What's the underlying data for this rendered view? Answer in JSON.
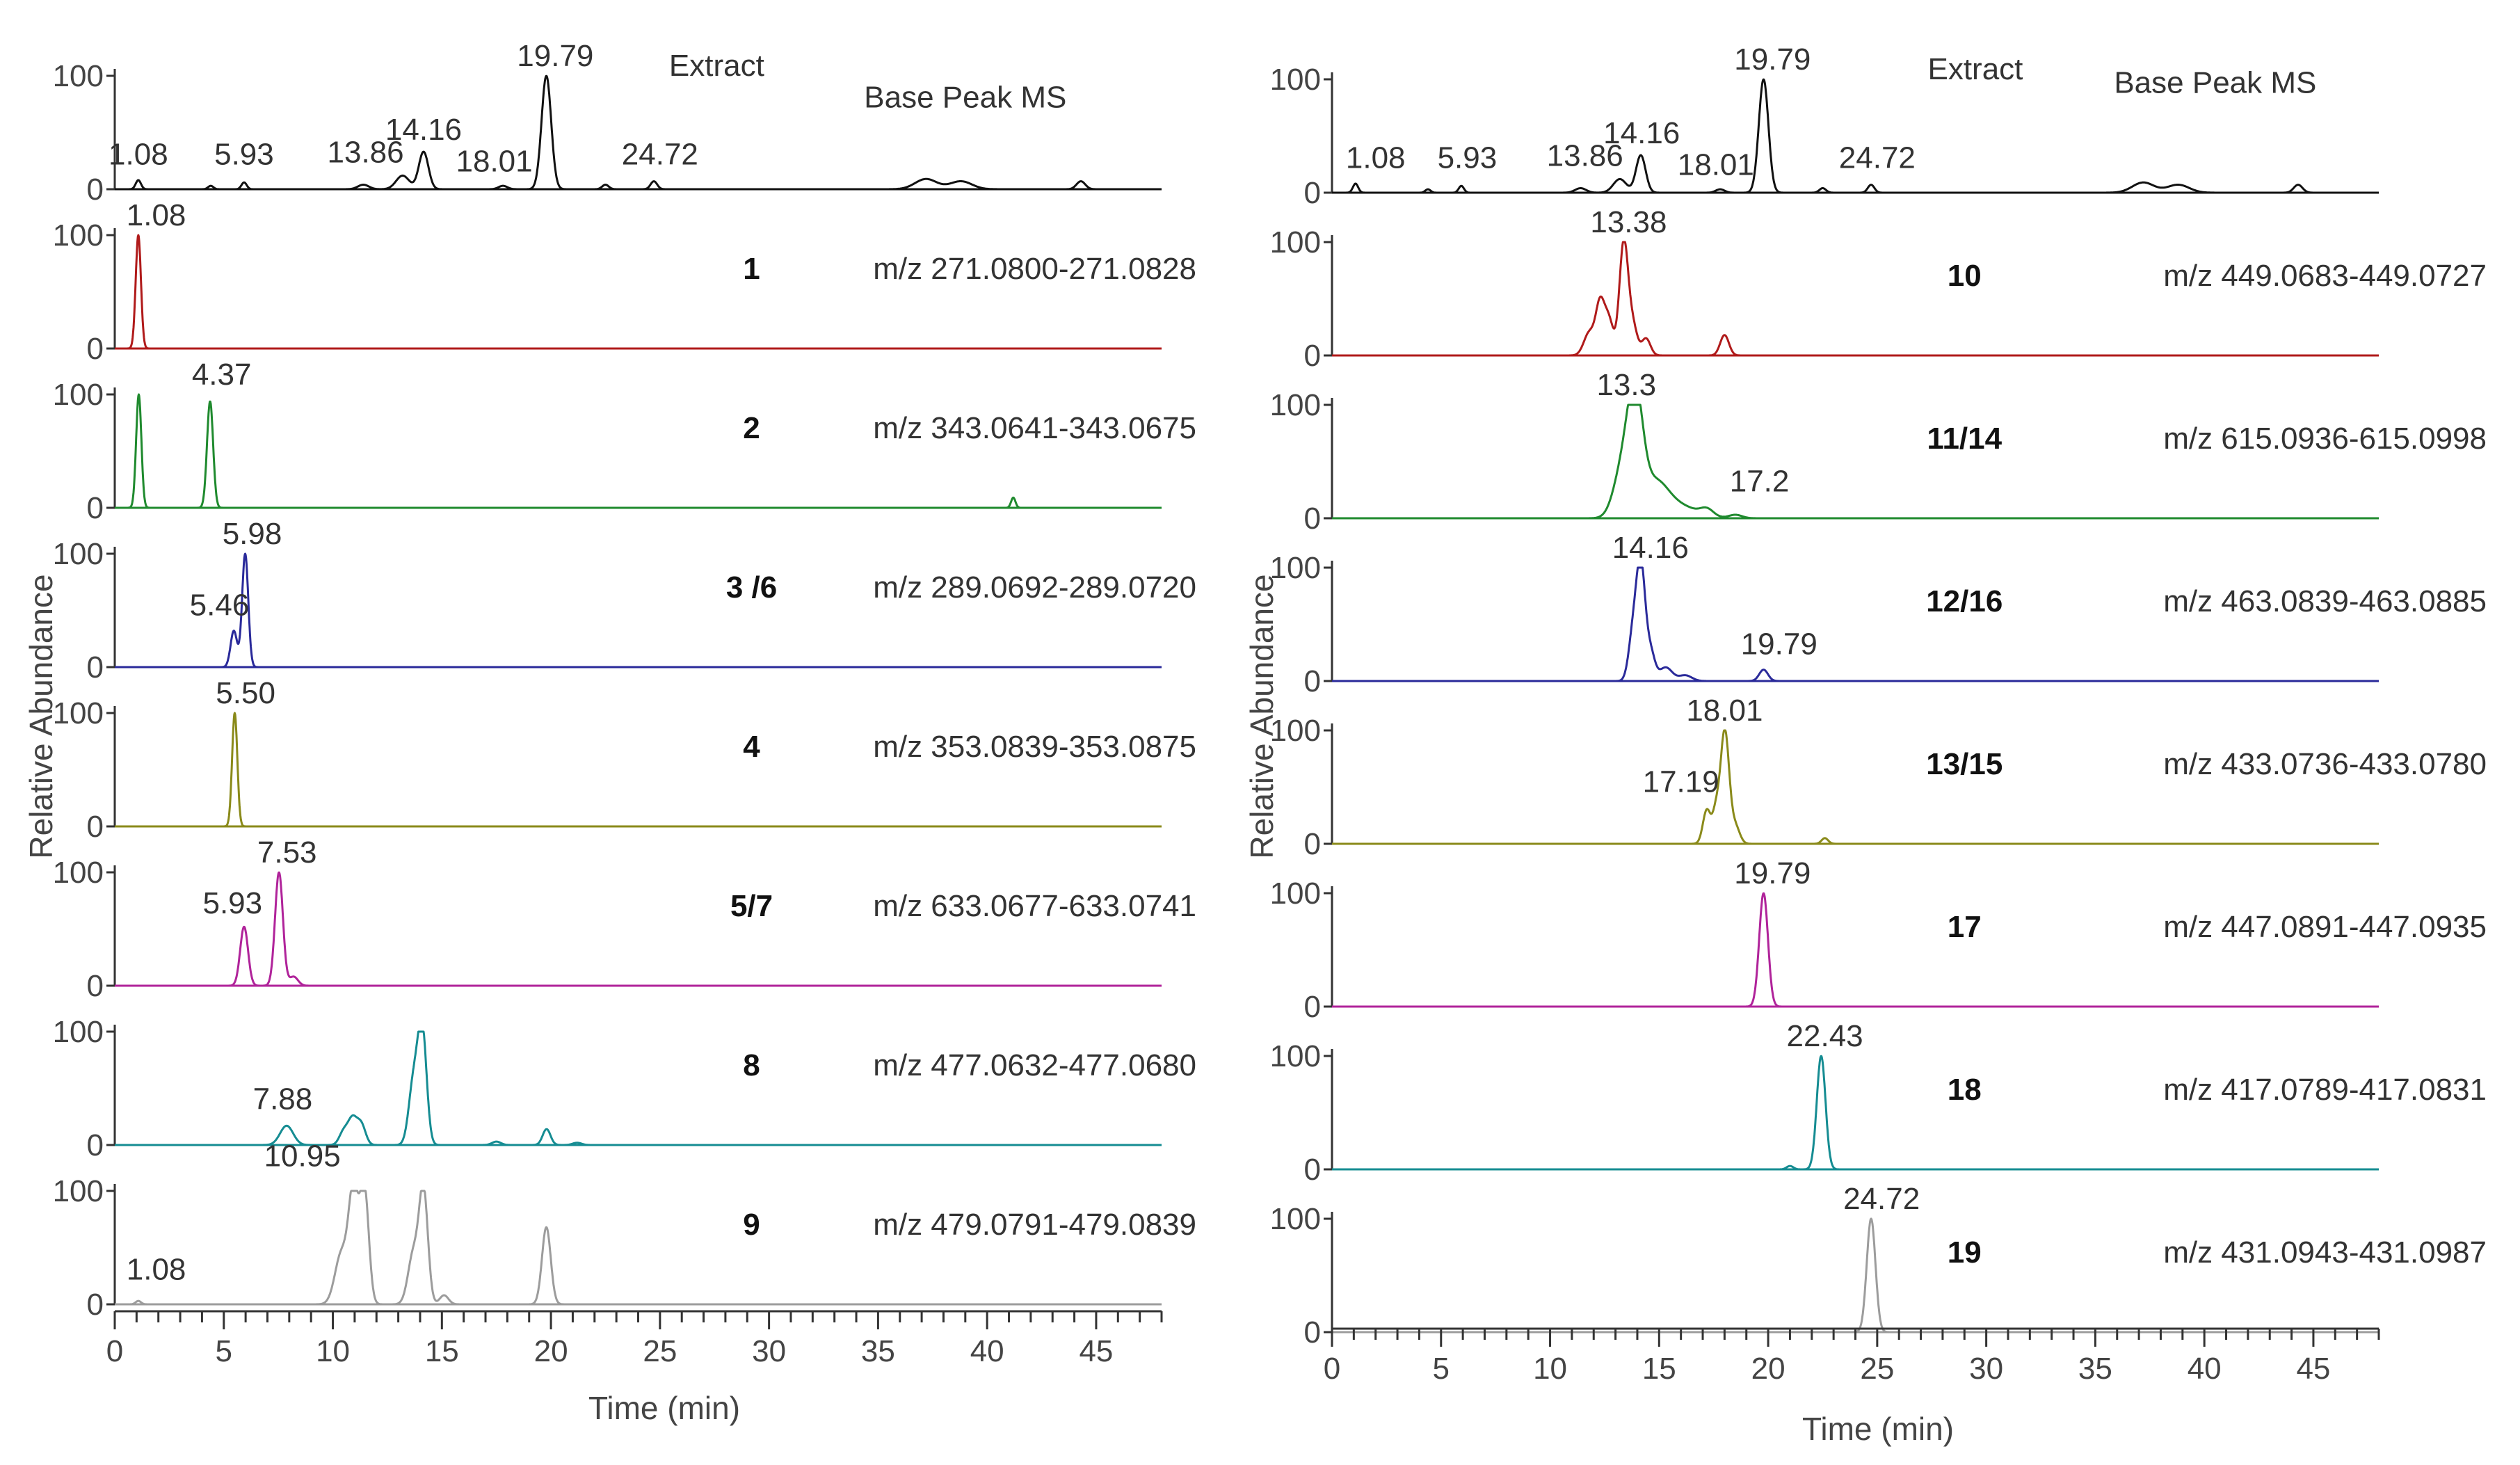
{
  "figure": {
    "x_axis_title": "Time (min)",
    "y_axis_title": "Relative Abundance"
  },
  "chart_data": [
    {
      "type": "line",
      "column": "left",
      "xlabel": "Time (min)",
      "ylabel": "Relative Abundance",
      "xlim": [
        0,
        48
      ],
      "ylim": [
        0,
        100
      ],
      "x_ticks": [
        "0",
        "5",
        "10",
        "15",
        "20",
        "25",
        "30",
        "35",
        "40",
        "45"
      ],
      "panels": [
        {
          "id": "left-base-peak",
          "compound": "",
          "title": "Extract",
          "subtitle": "Base Peak  MS",
          "mz": "",
          "color": "#111111",
          "peaks": [
            {
              "rt": 1.08,
              "h": 8,
              "w": 0.12
            },
            {
              "rt": 4.4,
              "h": 3,
              "w": 0.12
            },
            {
              "rt": 5.93,
              "h": 6,
              "w": 0.12
            },
            {
              "rt": 11.4,
              "h": 4,
              "w": 0.25
            },
            {
              "rt": 13.2,
              "h": 12,
              "w": 0.3
            },
            {
              "rt": 14.16,
              "h": 33,
              "w": 0.22
            },
            {
              "rt": 17.8,
              "h": 3,
              "w": 0.2
            },
            {
              "rt": 19.79,
              "h": 100,
              "w": 0.22
            },
            {
              "rt": 22.5,
              "h": 4,
              "w": 0.15
            },
            {
              "rt": 24.72,
              "h": 7,
              "w": 0.15
            },
            {
              "rt": 37.2,
              "h": 9,
              "w": 0.5
            },
            {
              "rt": 38.8,
              "h": 7,
              "w": 0.5
            },
            {
              "rt": 44.3,
              "h": 7,
              "w": 0.2
            }
          ],
          "labels": [
            {
              "text": "1.08",
              "rt": 1.08,
              "at": 18
            },
            {
              "text": "5.93",
              "rt": 5.93,
              "at": 18
            },
            {
              "text": "13.86",
              "rt": 11.5,
              "at": 20
            },
            {
              "text": "14.16",
              "rt": 14.16,
              "at": 40
            },
            {
              "text": "18.01",
              "rt": 17.4,
              "at": 12
            },
            {
              "text": "19.79",
              "rt": 20.2,
              "at": 105
            },
            {
              "text": "24.72",
              "rt": 25.0,
              "at": 18
            }
          ],
          "annotations": [
            {
              "text": "Extract",
              "x": 27.6,
              "y": 100,
              "bold": false
            },
            {
              "text": "Base Peak  MS",
              "x": 39.0,
              "y": 72,
              "bold": false
            }
          ]
        },
        {
          "id": "left-1",
          "compound": "1",
          "mz": "m/z 271.0800-271.0828",
          "color": "#b01a1a",
          "peaks": [
            {
              "rt": 1.08,
              "h": 100,
              "w": 0.12
            }
          ],
          "labels": [
            {
              "text": "1.08",
              "rt": 1.9,
              "at": 105
            }
          ],
          "annotations": []
        },
        {
          "id": "left-2",
          "compound": "2",
          "mz": "m/z 343.0641-343.0675",
          "color": "#1f8a2e",
          "peaks": [
            {
              "rt": 1.1,
              "h": 100,
              "w": 0.12
            },
            {
              "rt": 4.37,
              "h": 94,
              "w": 0.14
            },
            {
              "rt": 41.2,
              "h": 9,
              "w": 0.1
            }
          ],
          "labels": [
            {
              "text": "4.37",
              "rt": 4.9,
              "at": 105
            }
          ],
          "annotations": []
        },
        {
          "id": "left-3-6",
          "compound": "3 /6",
          "mz": "m/z 289.0692-289.0720",
          "color": "#2a2a9a",
          "peaks": [
            {
              "rt": 5.46,
              "h": 32,
              "w": 0.15
            },
            {
              "rt": 5.98,
              "h": 100,
              "w": 0.14
            }
          ],
          "labels": [
            {
              "text": "5.98",
              "rt": 6.3,
              "at": 105
            },
            {
              "text": "5.46",
              "rt": 4.8,
              "at": 42
            }
          ],
          "annotations": []
        },
        {
          "id": "left-4",
          "compound": "4",
          "mz": "m/z 353.0839-353.0875",
          "color": "#8a8a1a",
          "peaks": [
            {
              "rt": 5.5,
              "h": 100,
              "w": 0.12
            }
          ],
          "labels": [
            {
              "text": "5.50",
              "rt": 6.0,
              "at": 105
            }
          ],
          "annotations": []
        },
        {
          "id": "left-5-7",
          "compound": "5/7",
          "mz": "m/z 633.0677-633.0741",
          "color": "#b0239a",
          "peaks": [
            {
              "rt": 5.93,
              "h": 52,
              "w": 0.18
            },
            {
              "rt": 7.53,
              "h": 100,
              "w": 0.18
            },
            {
              "rt": 8.2,
              "h": 8,
              "w": 0.2
            }
          ],
          "labels": [
            {
              "text": "7.53",
              "rt": 7.9,
              "at": 105
            },
            {
              "text": "5.93",
              "rt": 5.4,
              "at": 60
            }
          ],
          "annotations": []
        },
        {
          "id": "left-8",
          "compound": "8",
          "mz": "m/z 477.0632-477.0680",
          "color": "#158c92",
          "peaks": [
            {
              "rt": 7.88,
              "h": 17,
              "w": 0.3
            },
            {
              "rt": 10.5,
              "h": 12,
              "w": 0.2
            },
            {
              "rt": 10.9,
              "h": 22,
              "w": 0.2
            },
            {
              "rt": 11.3,
              "h": 18,
              "w": 0.2
            },
            {
              "rt": 13.7,
              "h": 55,
              "w": 0.22
            },
            {
              "rt": 14.1,
              "h": 100,
              "w": 0.2
            },
            {
              "rt": 17.5,
              "h": 3,
              "w": 0.2
            },
            {
              "rt": 19.8,
              "h": 14,
              "w": 0.18
            },
            {
              "rt": 21.2,
              "h": 2,
              "w": 0.2
            }
          ],
          "labels": [
            {
              "text": "7.88",
              "rt": 7.7,
              "at": 28
            }
          ],
          "annotations": []
        },
        {
          "id": "left-9",
          "compound": "9",
          "mz": "m/z 479.0791-479.0839",
          "color": "#9c9c9c",
          "peaks": [
            {
              "rt": 1.08,
              "h": 3,
              "w": 0.12
            },
            {
              "rt": 10.4,
              "h": 45,
              "w": 0.3
            },
            {
              "rt": 10.95,
              "h": 97,
              "w": 0.22
            },
            {
              "rt": 11.45,
              "h": 100,
              "w": 0.2
            },
            {
              "rt": 13.7,
              "h": 45,
              "w": 0.25
            },
            {
              "rt": 14.16,
              "h": 98,
              "w": 0.2
            },
            {
              "rt": 15.1,
              "h": 8,
              "w": 0.2
            },
            {
              "rt": 19.79,
              "h": 68,
              "w": 0.2
            }
          ],
          "labels": [
            {
              "text": "10.95",
              "rt": 8.6,
              "at": 118
            },
            {
              "text": "1.08",
              "rt": 1.9,
              "at": 18
            }
          ],
          "annotations": []
        }
      ]
    },
    {
      "type": "line",
      "column": "right",
      "xlabel": "Time (min)",
      "ylabel": "Relative Abundance",
      "xlim": [
        0,
        48
      ],
      "ylim": [
        0,
        100
      ],
      "x_ticks": [
        "0",
        "5",
        "10",
        "15",
        "20",
        "25",
        "30",
        "35",
        "40",
        "45"
      ],
      "panels": [
        {
          "id": "right-base-peak",
          "compound": "",
          "title": "Extract",
          "subtitle": "Base Peak  MS",
          "mz": "",
          "color": "#111111",
          "peaks": [
            {
              "rt": 1.08,
              "h": 8,
              "w": 0.12
            },
            {
              "rt": 4.4,
              "h": 3,
              "w": 0.12
            },
            {
              "rt": 5.93,
              "h": 6,
              "w": 0.12
            },
            {
              "rt": 11.4,
              "h": 4,
              "w": 0.25
            },
            {
              "rt": 13.2,
              "h": 12,
              "w": 0.3
            },
            {
              "rt": 14.16,
              "h": 33,
              "w": 0.22
            },
            {
              "rt": 17.8,
              "h": 3,
              "w": 0.2
            },
            {
              "rt": 19.79,
              "h": 100,
              "w": 0.22
            },
            {
              "rt": 22.5,
              "h": 4,
              "w": 0.15
            },
            {
              "rt": 24.72,
              "h": 7,
              "w": 0.15
            },
            {
              "rt": 37.2,
              "h": 9,
              "w": 0.5
            },
            {
              "rt": 38.8,
              "h": 7,
              "w": 0.5
            },
            {
              "rt": 44.3,
              "h": 7,
              "w": 0.2
            }
          ],
          "labels": [
            {
              "text": "1.08",
              "rt": 2.0,
              "at": 18
            },
            {
              "text": "5.93",
              "rt": 6.2,
              "at": 18
            },
            {
              "text": "13.86",
              "rt": 11.6,
              "at": 20
            },
            {
              "text": "14.16",
              "rt": 14.2,
              "at": 40
            },
            {
              "text": "18.01",
              "rt": 17.6,
              "at": 12
            },
            {
              "text": "19.79",
              "rt": 20.2,
              "at": 105
            },
            {
              "text": "24.72",
              "rt": 25.0,
              "at": 18
            }
          ],
          "annotations": [
            {
              "text": "Extract",
              "x": 29.5,
              "y": 100,
              "bold": false
            },
            {
              "text": "Base Peak  MS",
              "x": 40.5,
              "y": 88,
              "bold": false
            }
          ]
        },
        {
          "id": "right-10",
          "compound": "10",
          "mz": "m/z 449.0683-449.0727",
          "color": "#b01a1a",
          "peaks": [
            {
              "rt": 11.8,
              "h": 20,
              "w": 0.25
            },
            {
              "rt": 12.3,
              "h": 45,
              "w": 0.2
            },
            {
              "rt": 12.7,
              "h": 30,
              "w": 0.2
            },
            {
              "rt": 13.38,
              "h": 100,
              "w": 0.2
            },
            {
              "rt": 13.8,
              "h": 25,
              "w": 0.2
            },
            {
              "rt": 14.4,
              "h": 15,
              "w": 0.2
            },
            {
              "rt": 18.0,
              "h": 18,
              "w": 0.2
            }
          ],
          "labels": [
            {
              "text": "13.38",
              "rt": 13.6,
              "at": 105
            }
          ],
          "annotations": []
        },
        {
          "id": "right-11-14",
          "compound": "11/14",
          "mz": "m/z 615.0936-615.0998",
          "color": "#1f8a2e",
          "peaks": [
            {
              "rt": 13.3,
              "h": 40,
              "w": 0.4
            },
            {
              "rt": 13.9,
              "h": 100,
              "w": 0.35
            },
            {
              "rt": 14.8,
              "h": 30,
              "w": 0.6
            },
            {
              "rt": 16.0,
              "h": 10,
              "w": 0.8
            },
            {
              "rt": 17.2,
              "h": 6,
              "w": 0.3
            },
            {
              "rt": 18.5,
              "h": 3,
              "w": 0.3
            }
          ],
          "labels": [
            {
              "text": "13.3",
              "rt": 13.5,
              "at": 105
            },
            {
              "text": "17.2",
              "rt": 19.6,
              "at": 20
            }
          ],
          "annotations": []
        },
        {
          "id": "right-12-16",
          "compound": "12/16",
          "mz": "m/z 463.0839-463.0885",
          "color": "#2a2a9a",
          "peaks": [
            {
              "rt": 13.8,
              "h": 40,
              "w": 0.2
            },
            {
              "rt": 14.16,
              "h": 100,
              "w": 0.2
            },
            {
              "rt": 14.6,
              "h": 25,
              "w": 0.2
            },
            {
              "rt": 15.3,
              "h": 12,
              "w": 0.3
            },
            {
              "rt": 16.2,
              "h": 5,
              "w": 0.3
            },
            {
              "rt": 19.79,
              "h": 10,
              "w": 0.2
            }
          ],
          "labels": [
            {
              "text": "14.16",
              "rt": 14.6,
              "at": 105
            },
            {
              "text": "19.79",
              "rt": 20.5,
              "at": 20
            }
          ],
          "annotations": []
        },
        {
          "id": "right-13-15",
          "compound": "13/15",
          "mz": "m/z 433.0736-433.0780",
          "color": "#8a8a1a",
          "peaks": [
            {
              "rt": 17.19,
              "h": 30,
              "w": 0.18
            },
            {
              "rt": 17.6,
              "h": 25,
              "w": 0.15
            },
            {
              "rt": 18.01,
              "h": 100,
              "w": 0.2
            },
            {
              "rt": 18.5,
              "h": 15,
              "w": 0.2
            },
            {
              "rt": 22.6,
              "h": 5,
              "w": 0.15
            }
          ],
          "labels": [
            {
              "text": "18.01",
              "rt": 18.0,
              "at": 105
            },
            {
              "text": "17.19",
              "rt": 16.0,
              "at": 42
            }
          ],
          "annotations": []
        },
        {
          "id": "right-17",
          "compound": "17",
          "mz": "m/z 447.0891-447.0935",
          "color": "#b0239a",
          "peaks": [
            {
              "rt": 19.79,
              "h": 100,
              "w": 0.2
            }
          ],
          "labels": [
            {
              "text": "19.79",
              "rt": 20.2,
              "at": 105
            }
          ],
          "annotations": []
        },
        {
          "id": "right-18",
          "compound": "18",
          "mz": "m/z 417.0789-417.0831",
          "color": "#158c92",
          "peaks": [
            {
              "rt": 21.0,
              "h": 3,
              "w": 0.15
            },
            {
              "rt": 22.43,
              "h": 100,
              "w": 0.2
            }
          ],
          "labels": [
            {
              "text": "22.43",
              "rt": 22.6,
              "at": 105
            }
          ],
          "annotations": []
        },
        {
          "id": "right-19",
          "compound": "19",
          "mz": "m/z 431.0943-431.0987",
          "color": "#9c9c9c",
          "peaks": [
            {
              "rt": 24.72,
              "h": 100,
              "w": 0.2
            }
          ],
          "labels": [
            {
              "text": "24.72",
              "rt": 25.2,
              "at": 105
            }
          ],
          "annotations": []
        }
      ]
    }
  ]
}
